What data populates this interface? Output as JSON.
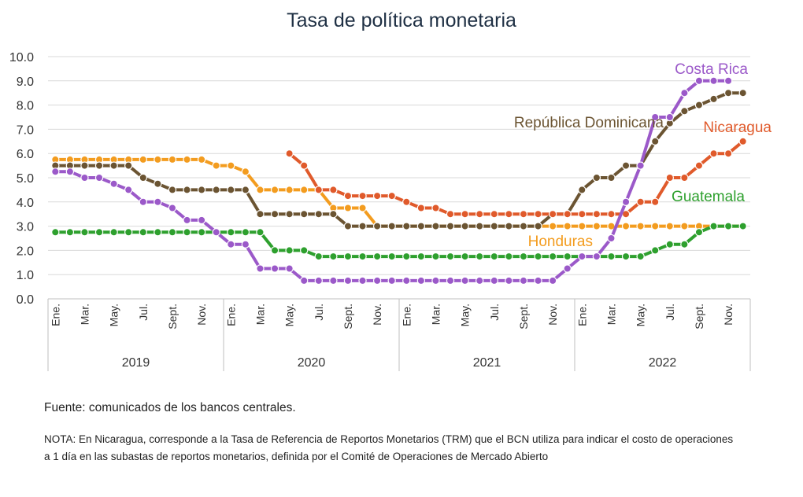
{
  "chart_data": {
    "type": "line",
    "title": "Tasa de política monetaria",
    "ylim": [
      0,
      10
    ],
    "y_ticks": [
      "0.0",
      "1.0",
      "2.0",
      "3.0",
      "4.0",
      "5.0",
      "6.0",
      "7.0",
      "8.0",
      "9.0",
      "10.0"
    ],
    "grid": true,
    "month_labels": [
      "Ene.",
      "Mar.",
      "May.",
      "Jul.",
      "Sept.",
      "Nov."
    ],
    "years": [
      "2019",
      "2020",
      "2021",
      "2022"
    ],
    "series": [
      {
        "name": "Costa Rica",
        "color": "#9b59c9",
        "values": [
          5.25,
          5.25,
          5.0,
          5.0,
          4.75,
          4.5,
          4.0,
          4.0,
          3.75,
          3.25,
          3.25,
          2.75,
          2.25,
          2.25,
          1.25,
          1.25,
          1.25,
          0.75,
          0.75,
          0.75,
          0.75,
          0.75,
          0.75,
          0.75,
          0.75,
          0.75,
          0.75,
          0.75,
          0.75,
          0.75,
          0.75,
          0.75,
          0.75,
          0.75,
          0.75,
          1.25,
          1.75,
          1.75,
          2.5,
          4.0,
          5.5,
          7.5,
          7.5,
          8.5,
          9.0,
          9.0,
          9.0
        ]
      },
      {
        "name": "República Dominicana",
        "color": "#6b5432",
        "values": [
          5.5,
          5.5,
          5.5,
          5.5,
          5.5,
          5.5,
          5.0,
          4.75,
          4.5,
          4.5,
          4.5,
          4.5,
          4.5,
          4.5,
          3.5,
          3.5,
          3.5,
          3.5,
          3.5,
          3.5,
          3.0,
          3.0,
          3.0,
          3.0,
          3.0,
          3.0,
          3.0,
          3.0,
          3.0,
          3.0,
          3.0,
          3.0,
          3.0,
          3.0,
          3.5,
          3.5,
          4.5,
          5.0,
          5.0,
          5.5,
          5.5,
          6.5,
          7.25,
          7.75,
          8.0,
          8.25,
          8.5,
          8.5
        ]
      },
      {
        "name": "Nicaragua",
        "color": "#e05a2b",
        "values": [
          null,
          null,
          null,
          null,
          null,
          null,
          null,
          null,
          null,
          null,
          null,
          null,
          null,
          null,
          null,
          null,
          6.0,
          5.5,
          4.5,
          4.5,
          4.25,
          4.25,
          4.25,
          4.25,
          4.0,
          3.75,
          3.75,
          3.5,
          3.5,
          3.5,
          3.5,
          3.5,
          3.5,
          3.5,
          3.5,
          3.5,
          3.5,
          3.5,
          3.5,
          3.5,
          4.0,
          4.0,
          5.0,
          5.0,
          5.5,
          6.0,
          6.0,
          6.5,
          6.5
        ]
      },
      {
        "name": "Guatemala",
        "color": "#2ea02e",
        "values": [
          2.75,
          2.75,
          2.75,
          2.75,
          2.75,
          2.75,
          2.75,
          2.75,
          2.75,
          2.75,
          2.75,
          2.75,
          2.75,
          2.75,
          2.75,
          2.0,
          2.0,
          2.0,
          1.75,
          1.75,
          1.75,
          1.75,
          1.75,
          1.75,
          1.75,
          1.75,
          1.75,
          1.75,
          1.75,
          1.75,
          1.75,
          1.75,
          1.75,
          1.75,
          1.75,
          1.75,
          1.75,
          1.75,
          1.75,
          1.75,
          1.75,
          2.0,
          2.25,
          2.25,
          2.75,
          3.0,
          3.0,
          3.0,
          3.75
        ]
      },
      {
        "name": "Honduras",
        "color": "#f39c1f",
        "values": [
          5.75,
          5.75,
          5.75,
          5.75,
          5.75,
          5.75,
          5.75,
          5.75,
          5.75,
          5.75,
          5.75,
          5.5,
          5.5,
          5.25,
          4.5,
          4.5,
          4.5,
          4.5,
          4.5,
          3.75,
          3.75,
          3.75,
          3.0,
          3.0,
          3.0,
          3.0,
          3.0,
          3.0,
          3.0,
          3.0,
          3.0,
          3.0,
          3.0,
          3.0,
          3.0,
          3.0,
          3.0,
          3.0,
          3.0,
          3.0,
          3.0,
          3.0,
          3.0,
          3.0,
          3.0,
          3.0,
          3.0,
          3.0
        ]
      }
    ]
  },
  "source": "Fuente: comunicados de los bancos centrales.",
  "note": "NOTA: En Nicaragua, corresponde a la Tasa de Referencia de Reportos Monetarios (TRM) que el BCN utiliza para indicar el costo de operaciones a 1 día en las subastas de reportos monetarios, definida por el Comité de Operaciones de Mercado Abierto"
}
